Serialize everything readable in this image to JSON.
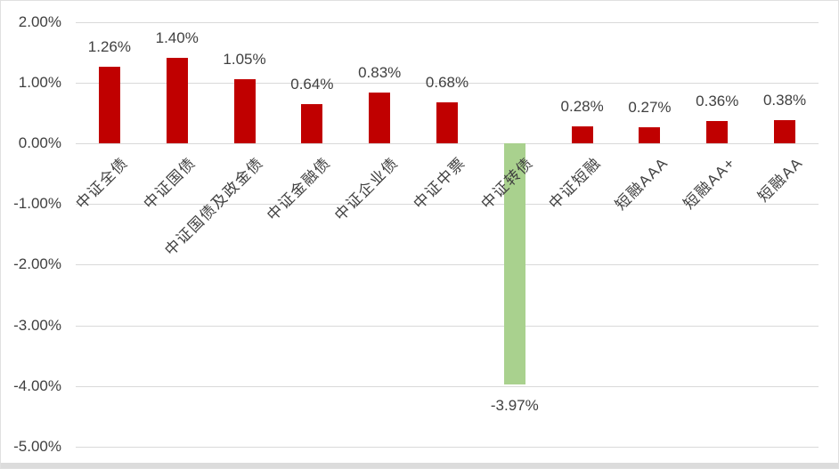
{
  "chart_data": {
    "type": "bar",
    "title": "",
    "xlabel": "",
    "ylabel": "",
    "categories": [
      "中证全债",
      "中证国债",
      "中证国债及政金债",
      "中证金融债",
      "中证企业债",
      "中证中票",
      "中证转债",
      "中证短融",
      "短融AAA",
      "短融AA+",
      "短融AA"
    ],
    "values": [
      1.26,
      1.4,
      1.05,
      0.64,
      0.83,
      0.68,
      -3.97,
      0.28,
      0.27,
      0.36,
      0.38
    ],
    "data_labels": [
      "1.26%",
      "1.40%",
      "1.05%",
      "0.64%",
      "0.83%",
      "0.68%",
      "-3.97%",
      "0.28%",
      "0.27%",
      "0.36%",
      "0.38%"
    ],
    "ylim": [
      -5,
      2
    ],
    "ytick_step": 1,
    "ytick_labels": [
      "2.00%",
      "1.00%",
      "0.00%",
      "-1.00%",
      "-2.00%",
      "-3.00%",
      "-4.00%",
      "-5.00%"
    ],
    "grid": "horizontal",
    "legend": "none",
    "colors": {
      "positive_bar": "#C00000",
      "negative_bar": "#A9D18E",
      "gridline": "#D9D9D9",
      "axis_text": "#404040",
      "background": "#FFFFFF",
      "border": "#E0E0E0"
    }
  }
}
